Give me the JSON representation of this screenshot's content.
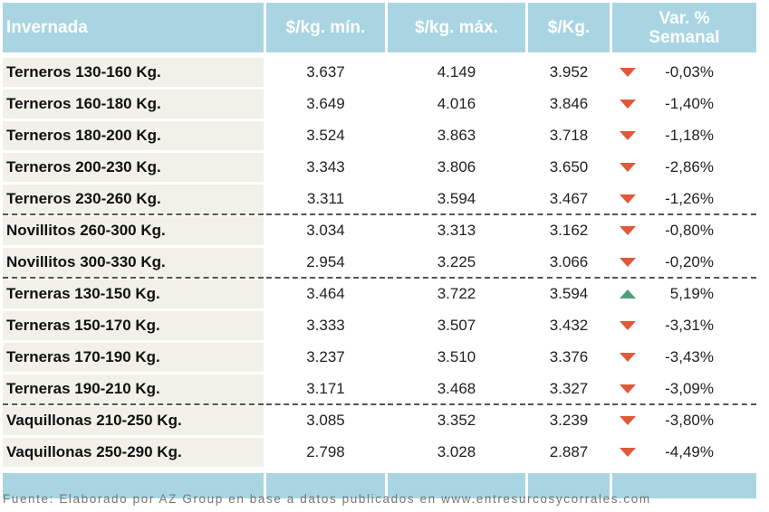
{
  "header": {
    "col0": "Invernada",
    "col1": "$/kg. mín.",
    "col2": "$/kg. máx.",
    "col3": "$/Kg.",
    "col4_line1": "Var. %",
    "col4_line2": "Semanal"
  },
  "rows": [
    {
      "name": "Terneros 130-160 Kg.",
      "min": "3.637",
      "max": "4.149",
      "avg": "3.952",
      "trend": "down",
      "var": "-0,03%"
    },
    {
      "name": "Terneros 160-180 Kg.",
      "min": "3.649",
      "max": "4.016",
      "avg": "3.846",
      "trend": "down",
      "var": "-1,40%"
    },
    {
      "name": "Terneros 180-200 Kg.",
      "min": "3.524",
      "max": "3.863",
      "avg": "3.718",
      "trend": "down",
      "var": "-1,18%"
    },
    {
      "name": "Terneros 200-230 Kg.",
      "min": "3.343",
      "max": "3.806",
      "avg": "3.650",
      "trend": "down",
      "var": "-2,86%"
    },
    {
      "name": "Terneros 230-260 Kg.",
      "min": "3.311",
      "max": "3.594",
      "avg": "3.467",
      "trend": "down",
      "var": "-1,26%"
    },
    {
      "name": "Novillitos 260-300 Kg.",
      "min": "3.034",
      "max": "3.313",
      "avg": "3.162",
      "trend": "down",
      "var": "-0,80%"
    },
    {
      "name": "Novillitos 300-330 Kg.",
      "min": "2.954",
      "max": "3.225",
      "avg": "3.066",
      "trend": "down",
      "var": "-0,20%"
    },
    {
      "name": "Terneras 130-150 Kg.",
      "min": "3.464",
      "max": "3.722",
      "avg": "3.594",
      "trend": "up",
      "var": "5,19%"
    },
    {
      "name": "Terneras 150-170 Kg.",
      "min": "3.333",
      "max": "3.507",
      "avg": "3.432",
      "trend": "down",
      "var": "-3,31%"
    },
    {
      "name": "Terneras 170-190 Kg.",
      "min": "3.237",
      "max": "3.510",
      "avg": "3.376",
      "trend": "down",
      "var": "-3,43%"
    },
    {
      "name": "Terneras 190-210 Kg.",
      "min": "3.171",
      "max": "3.468",
      "avg": "3.327",
      "trend": "down",
      "var": "-3,09%"
    },
    {
      "name": "Vaquillonas 210-250 Kg.",
      "min": "3.085",
      "max": "3.352",
      "avg": "3.239",
      "trend": "down",
      "var": "-3,80%"
    },
    {
      "name": "Vaquillonas 250-290 Kg.",
      "min": "2.798",
      "max": "3.028",
      "avg": "2.887",
      "trend": "down",
      "var": "-4,49%"
    }
  ],
  "source": "Fuente: Elaborado por AZ Group en base a datos publicados en www.entresurcosycorrales.com",
  "colors": {
    "header_bg": "#a9d5e3",
    "down": "#e05a3a",
    "up": "#4fa07a",
    "label_bg": "#f2f1e9"
  }
}
